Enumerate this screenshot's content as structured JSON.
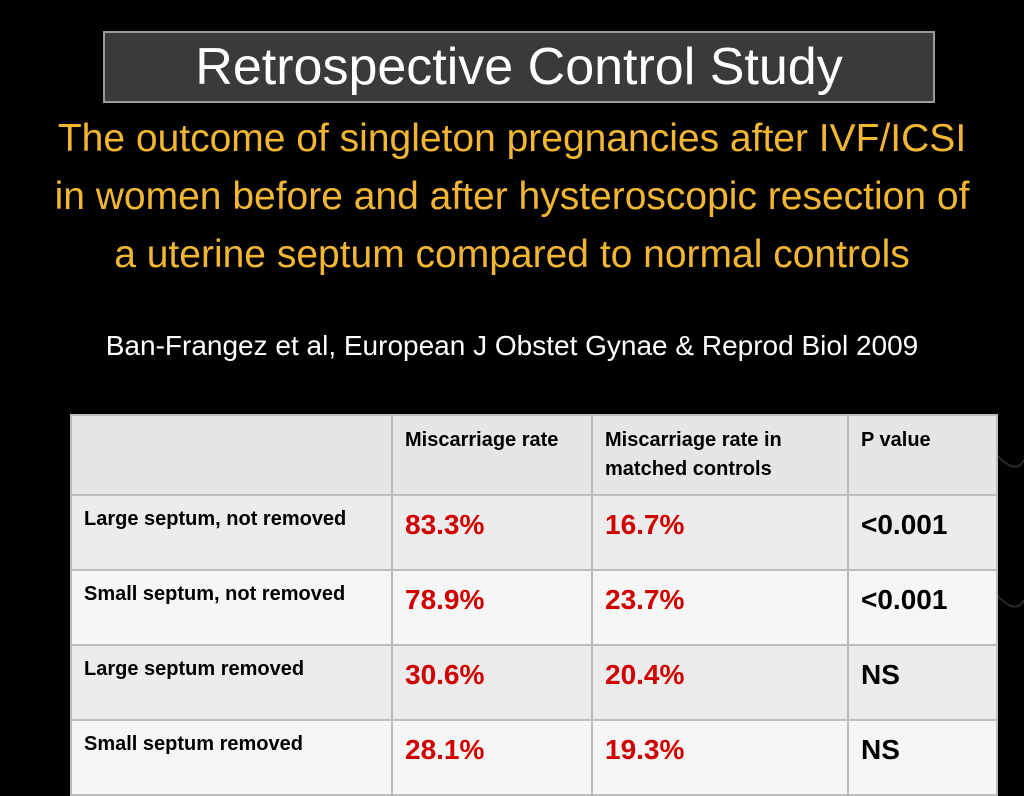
{
  "slide": {
    "title": "Retrospective Control Study",
    "subtitle": "The outcome of singleton pregnancies after IVF/ICSI in women before and after hysteroscopic resection of a uterine septum compared to normal controls",
    "citation": "Ban-Frangez et al, European J Obstet Gynae & Reprod Biol 2009"
  },
  "table": {
    "headers": [
      "",
      "Miscarriage rate",
      "Miscarriage rate in matched controls",
      "P value"
    ],
    "rows": [
      {
        "label": "Large septum, not removed",
        "miscarriage": "83.3%",
        "controls": "16.7%",
        "p": "<0.001"
      },
      {
        "label": "Small septum, not removed",
        "miscarriage": "78.9%",
        "controls": "23.7%",
        "p": "<0.001"
      },
      {
        "label": "Large septum removed",
        "miscarriage": "30.6%",
        "controls": "20.4%",
        "p": "NS"
      },
      {
        "label": "Small septum removed",
        "miscarriage": "28.1%",
        "controls": "19.3%",
        "p": "NS"
      }
    ]
  },
  "colors": {
    "background": "#000000",
    "subtitle": "#f2b632",
    "value_red": "#d10000",
    "title_box": "#3a3a3a"
  }
}
